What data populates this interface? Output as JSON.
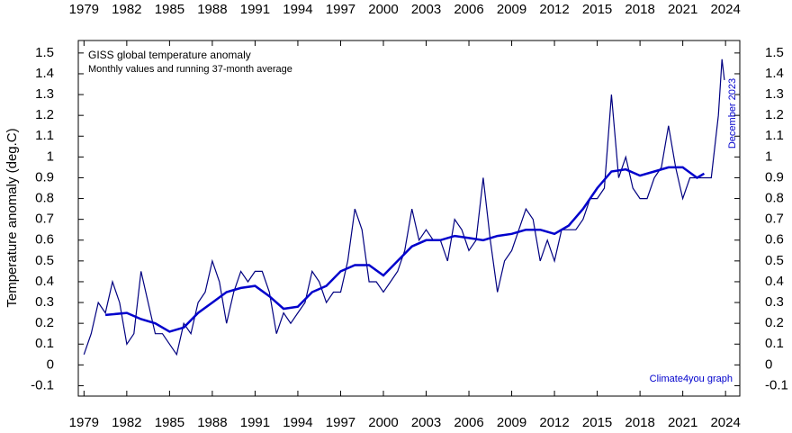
{
  "chart_data": {
    "type": "line",
    "title": "GISS global temperature anomaly",
    "subtitle": "Monthly values and running 37-month average",
    "y_label": "Temperature anomaly (deg.C)",
    "annotations": [
      "December 2023",
      "Climate4you graph"
    ],
    "xlim": [
      1978.6,
      2025
    ],
    "ylim": [
      -0.15,
      1.56
    ],
    "xticks": [
      1979,
      1982,
      1985,
      1988,
      1991,
      1994,
      1997,
      2000,
      2003,
      2006,
      2009,
      2012,
      2015,
      2018,
      2021,
      2024
    ],
    "yticks": [
      -0.1,
      0,
      0.1,
      0.2,
      0.3,
      0.4,
      0.5,
      0.6,
      0.7,
      0.8,
      0.9,
      1,
      1.1,
      1.2,
      1.3,
      1.4,
      1.5
    ],
    "series": [
      {
        "name": "Monthly values",
        "color": "#000080",
        "x": [
          1979.0,
          1979.5,
          1980.0,
          1980.5,
          1981.0,
          1981.5,
          1982.0,
          1982.5,
          1983.0,
          1983.5,
          1984.0,
          1984.5,
          1985.0,
          1985.5,
          1986.0,
          1986.5,
          1987.0,
          1987.5,
          1988.0,
          1988.5,
          1989.0,
          1989.5,
          1990.0,
          1990.5,
          1991.0,
          1991.5,
          1992.0,
          1992.5,
          1993.0,
          1993.5,
          1994.0,
          1994.5,
          1995.0,
          1995.5,
          1996.0,
          1996.5,
          1997.0,
          1997.5,
          1998.0,
          1998.5,
          1999.0,
          1999.5,
          2000.0,
          2000.5,
          2001.0,
          2001.5,
          2002.0,
          2002.5,
          2003.0,
          2003.5,
          2004.0,
          2004.5,
          2005.0,
          2005.5,
          2006.0,
          2006.5,
          2007.0,
          2007.5,
          2008.0,
          2008.5,
          2009.0,
          2009.5,
          2010.0,
          2010.5,
          2011.0,
          2011.5,
          2012.0,
          2012.5,
          2013.0,
          2013.5,
          2014.0,
          2014.5,
          2015.0,
          2015.5,
          2016.0,
          2016.5,
          2017.0,
          2017.5,
          2018.0,
          2018.5,
          2019.0,
          2019.5,
          2020.0,
          2020.5,
          2021.0,
          2021.5,
          2022.0,
          2022.5,
          2023.0,
          2023.5,
          2023.75,
          2023.92
        ],
        "values": [
          0.05,
          0.15,
          0.3,
          0.25,
          0.4,
          0.3,
          0.1,
          0.15,
          0.45,
          0.3,
          0.15,
          0.15,
          0.1,
          0.05,
          0.2,
          0.15,
          0.3,
          0.35,
          0.5,
          0.4,
          0.2,
          0.35,
          0.45,
          0.4,
          0.45,
          0.45,
          0.35,
          0.15,
          0.25,
          0.2,
          0.25,
          0.3,
          0.45,
          0.4,
          0.3,
          0.35,
          0.35,
          0.5,
          0.75,
          0.65,
          0.4,
          0.4,
          0.35,
          0.4,
          0.45,
          0.55,
          0.75,
          0.6,
          0.65,
          0.6,
          0.6,
          0.5,
          0.7,
          0.65,
          0.55,
          0.6,
          0.9,
          0.6,
          0.35,
          0.5,
          0.55,
          0.65,
          0.75,
          0.7,
          0.5,
          0.6,
          0.5,
          0.65,
          0.65,
          0.65,
          0.7,
          0.8,
          0.8,
          0.85,
          1.3,
          0.9,
          1.0,
          0.85,
          0.8,
          0.8,
          0.9,
          0.95,
          1.15,
          0.95,
          0.8,
          0.9,
          0.9,
          0.9,
          0.9,
          1.2,
          1.47,
          1.37
        ]
      },
      {
        "name": "Running 37-month average",
        "color": "#0000cc",
        "x": [
          1980.5,
          1982,
          1983,
          1984,
          1985,
          1986,
          1987,
          1988,
          1989,
          1990,
          1991,
          1992,
          1993,
          1994,
          1995,
          1996,
          1997,
          1998,
          1999,
          2000,
          2001,
          2002,
          2003,
          2004,
          2005,
          2006,
          2007,
          2008,
          2009,
          2010,
          2011,
          2012,
          2013,
          2014,
          2015,
          2016,
          2017,
          2018,
          2019,
          2020,
          2021,
          2022,
          2022.5
        ],
        "values": [
          0.24,
          0.25,
          0.22,
          0.2,
          0.16,
          0.18,
          0.25,
          0.3,
          0.35,
          0.37,
          0.38,
          0.33,
          0.27,
          0.28,
          0.35,
          0.38,
          0.45,
          0.48,
          0.48,
          0.43,
          0.5,
          0.57,
          0.6,
          0.6,
          0.62,
          0.61,
          0.6,
          0.62,
          0.63,
          0.65,
          0.65,
          0.63,
          0.67,
          0.75,
          0.85,
          0.93,
          0.94,
          0.91,
          0.93,
          0.95,
          0.95,
          0.9,
          0.92
        ]
      }
    ]
  }
}
